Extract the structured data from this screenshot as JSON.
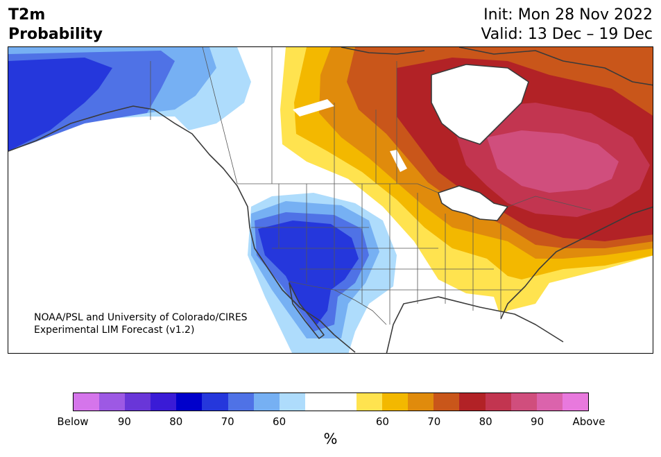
{
  "header": {
    "title_line1": "T2m",
    "title_line2": "Probability",
    "init_text": "Init: Mon 28 Nov 2022",
    "valid_text": "Valid: 13 Dec – 19 Dec"
  },
  "credit": {
    "line1": "NOAA/PSL and University of Colorado/CIRES",
    "line2": "Experimental LIM Forecast (v1.2)"
  },
  "colorbar": {
    "colors": [
      "#d575eb",
      "#9d59e4",
      "#6936d8",
      "#3a1bd6",
      "#0000cb",
      "#2537dc",
      "#4f72e6",
      "#76b0f3",
      "#aedcfc",
      "#ffffff",
      "#ffffff",
      "#ffe34f",
      "#f3b800",
      "#e08b0c",
      "#c9561a",
      "#b22226",
      "#c23550",
      "#d04e7d",
      "#db63ac",
      "#e879dd"
    ],
    "tick_labels": [
      "Below",
      "90",
      "80",
      "70",
      "60",
      "60",
      "70",
      "80",
      "90",
      "Above"
    ],
    "unit_label": "%"
  }
}
